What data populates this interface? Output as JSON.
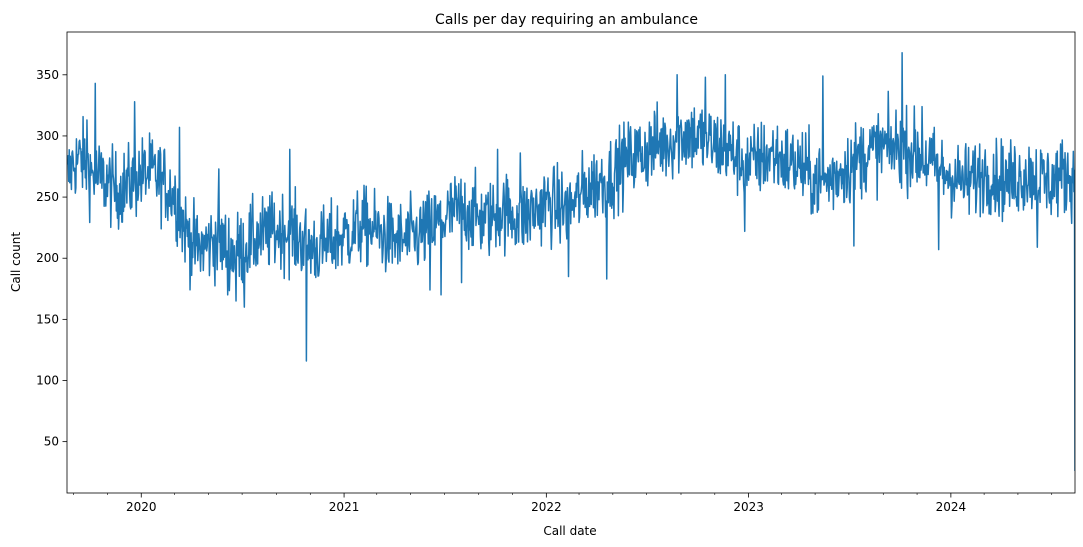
{
  "chart_data": {
    "type": "line",
    "title": "Calls per day requiring an ambulance",
    "xlabel": "Call date",
    "ylabel": "Call count",
    "x_axis": "date",
    "xlim": [
      "2019-08-20",
      "2024-08-12"
    ],
    "ylim": [
      8,
      385
    ],
    "grid": false,
    "legend": "none",
    "x_ticks": [
      {
        "date": "2020-01-01",
        "label": "2020"
      },
      {
        "date": "2021-01-01",
        "label": "2021"
      },
      {
        "date": "2022-01-01",
        "label": "2022"
      },
      {
        "date": "2023-01-01",
        "label": "2023"
      },
      {
        "date": "2024-01-01",
        "label": "2024"
      }
    ],
    "y_ticks": [
      50,
      100,
      150,
      200,
      250,
      300,
      350
    ],
    "series": [
      {
        "color": "#1f77b4",
        "points": [
          [
            "2019-08-20",
            265
          ],
          [
            "2019-09-01",
            278
          ],
          [
            "2019-09-15",
            282
          ],
          [
            "2019-10-01",
            270
          ],
          [
            "2019-10-15",
            266
          ],
          [
            "2019-11-01",
            262
          ],
          [
            "2019-11-15",
            255
          ],
          [
            "2019-12-01",
            258
          ],
          [
            "2019-12-15",
            262
          ],
          [
            "2020-01-01",
            268
          ],
          [
            "2020-01-15",
            270
          ],
          [
            "2020-02-01",
            266
          ],
          [
            "2020-02-15",
            260
          ],
          [
            "2020-03-01",
            252
          ],
          [
            "2020-03-15",
            230
          ],
          [
            "2020-04-01",
            212
          ],
          [
            "2020-04-15",
            207
          ],
          [
            "2020-05-01",
            212
          ],
          [
            "2020-05-15",
            214
          ],
          [
            "2020-06-01",
            210
          ],
          [
            "2020-06-15",
            205
          ],
          [
            "2020-07-01",
            208
          ],
          [
            "2020-07-15",
            213
          ],
          [
            "2020-08-01",
            217
          ],
          [
            "2020-08-15",
            220
          ],
          [
            "2020-09-01",
            222
          ],
          [
            "2020-09-15",
            223
          ],
          [
            "2020-10-01",
            219
          ],
          [
            "2020-10-15",
            215
          ],
          [
            "2020-11-01",
            210
          ],
          [
            "2020-11-15",
            208
          ],
          [
            "2020-12-01",
            211
          ],
          [
            "2020-12-15",
            215
          ],
          [
            "2021-01-01",
            219
          ],
          [
            "2021-01-15",
            221
          ],
          [
            "2021-02-01",
            226
          ],
          [
            "2021-02-15",
            225
          ],
          [
            "2021-03-01",
            222
          ],
          [
            "2021-03-15",
            218
          ],
          [
            "2021-04-01",
            216
          ],
          [
            "2021-04-15",
            214
          ],
          [
            "2021-05-01",
            216
          ],
          [
            "2021-05-15",
            219
          ],
          [
            "2021-06-01",
            223
          ],
          [
            "2021-06-15",
            227
          ],
          [
            "2021-07-01",
            232
          ],
          [
            "2021-07-15",
            237
          ],
          [
            "2021-08-01",
            240
          ],
          [
            "2021-08-15",
            238
          ],
          [
            "2021-09-01",
            233
          ],
          [
            "2021-09-15",
            231
          ],
          [
            "2021-10-01",
            235
          ],
          [
            "2021-10-15",
            239
          ],
          [
            "2021-11-01",
            236
          ],
          [
            "2021-11-15",
            233
          ],
          [
            "2021-12-01",
            236
          ],
          [
            "2021-12-15",
            240
          ],
          [
            "2022-01-01",
            246
          ],
          [
            "2022-01-15",
            243
          ],
          [
            "2022-02-01",
            240
          ],
          [
            "2022-02-15",
            243
          ],
          [
            "2022-03-01",
            250
          ],
          [
            "2022-03-15",
            257
          ],
          [
            "2022-04-01",
            261
          ],
          [
            "2022-04-15",
            264
          ],
          [
            "2022-05-01",
            269
          ],
          [
            "2022-05-15",
            276
          ],
          [
            "2022-06-01",
            281
          ],
          [
            "2022-06-15",
            285
          ],
          [
            "2022-07-01",
            288
          ],
          [
            "2022-07-15",
            292
          ],
          [
            "2022-08-01",
            294
          ],
          [
            "2022-08-15",
            296
          ],
          [
            "2022-09-01",
            300
          ],
          [
            "2022-09-15",
            302
          ],
          [
            "2022-10-01",
            299
          ],
          [
            "2022-10-15",
            296
          ],
          [
            "2022-11-01",
            293
          ],
          [
            "2022-11-15",
            290
          ],
          [
            "2022-12-01",
            286
          ],
          [
            "2022-12-15",
            282
          ],
          [
            "2023-01-01",
            276
          ],
          [
            "2023-01-15",
            280
          ],
          [
            "2023-02-01",
            283
          ],
          [
            "2023-02-15",
            285
          ],
          [
            "2023-03-01",
            281
          ],
          [
            "2023-03-15",
            278
          ],
          [
            "2023-04-01",
            276
          ],
          [
            "2023-04-15",
            270
          ],
          [
            "2023-05-01",
            264
          ],
          [
            "2023-05-15",
            262
          ],
          [
            "2023-06-01",
            266
          ],
          [
            "2023-06-15",
            271
          ],
          [
            "2023-07-01",
            276
          ],
          [
            "2023-07-15",
            281
          ],
          [
            "2023-08-01",
            285
          ],
          [
            "2023-08-15",
            288
          ],
          [
            "2023-09-01",
            291
          ],
          [
            "2023-09-15",
            290
          ],
          [
            "2023-10-01",
            292
          ],
          [
            "2023-10-15",
            289
          ],
          [
            "2023-11-01",
            285
          ],
          [
            "2023-11-15",
            281
          ],
          [
            "2023-12-01",
            275
          ],
          [
            "2023-12-15",
            270
          ],
          [
            "2024-01-01",
            268
          ],
          [
            "2024-01-15",
            264
          ],
          [
            "2024-02-01",
            262
          ],
          [
            "2024-02-15",
            266
          ],
          [
            "2024-03-01",
            270
          ],
          [
            "2024-03-15",
            268
          ],
          [
            "2024-04-01",
            265
          ],
          [
            "2024-04-15",
            263
          ],
          [
            "2024-05-01",
            266
          ],
          [
            "2024-05-15",
            269
          ],
          [
            "2024-06-01",
            267
          ],
          [
            "2024-06-15",
            264
          ],
          [
            "2024-07-01",
            262
          ],
          [
            "2024-07-15",
            266
          ],
          [
            "2024-08-01",
            268
          ],
          [
            "2024-08-10",
            265
          ]
        ],
        "spikes": [
          [
            "2019-09-25",
            313
          ],
          [
            "2019-10-10",
            343
          ],
          [
            "2019-12-20",
            328
          ],
          [
            "2020-03-10",
            307
          ],
          [
            "2020-05-20",
            273
          ],
          [
            "2020-06-05",
            170
          ],
          [
            "2020-06-20",
            165
          ],
          [
            "2020-07-05",
            160
          ],
          [
            "2020-09-25",
            289
          ],
          [
            "2020-10-25",
            116
          ],
          [
            "2021-06-05",
            174
          ],
          [
            "2021-06-25",
            170
          ],
          [
            "2021-08-01",
            180
          ],
          [
            "2021-10-05",
            289
          ],
          [
            "2021-11-15",
            286
          ],
          [
            "2022-02-10",
            185
          ],
          [
            "2022-04-20",
            183
          ],
          [
            "2022-08-25",
            350
          ],
          [
            "2022-10-15",
            348
          ],
          [
            "2022-11-20",
            350
          ],
          [
            "2022-12-25",
            222
          ],
          [
            "2023-05-15",
            349
          ],
          [
            "2023-07-10",
            210
          ],
          [
            "2023-10-05",
            368
          ],
          [
            "2023-11-10",
            324
          ],
          [
            "2023-12-10",
            207
          ],
          [
            "2024-06-05",
            209
          ]
        ],
        "final_point": [
          "2024-08-12",
          26
        ]
      }
    ]
  }
}
